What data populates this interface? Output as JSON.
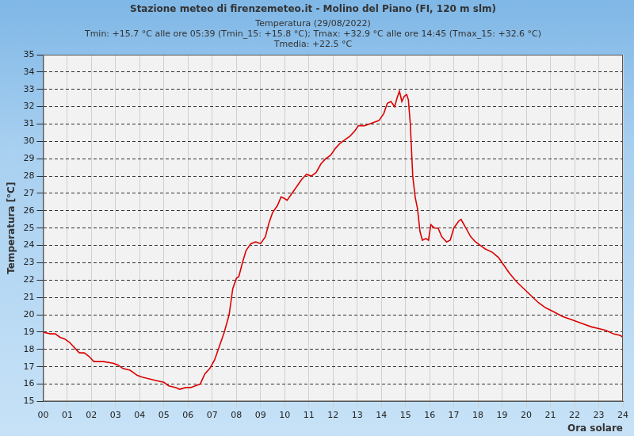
{
  "chart_data": {
    "type": "line",
    "title": "Stazione meteo di firenzemeteo.it - Molino del Piano (FI, 120 m slm)",
    "subtitle": [
      "Temperatura (29/08/2022)",
      "Tmin: +15.7 °C alle ore 05:39 (Tmin_15: +15.8 °C); Tmax: +32.9 °C alle ore 14:45 (Tmax_15: +32.6 °C)",
      "Tmedia: +22.5 °C"
    ],
    "x_label": "Ora solare",
    "y_label": "Temperatura [°C]",
    "x": [
      0.0,
      0.3,
      0.5,
      0.7,
      0.9,
      1.1,
      1.3,
      1.5,
      1.7,
      1.9,
      2.1,
      2.5,
      2.9,
      3.1,
      3.3,
      3.6,
      3.9,
      4.1,
      4.4,
      4.7,
      5.0,
      5.2,
      5.5,
      5.65,
      5.9,
      6.1,
      6.3,
      6.5,
      6.7,
      6.9,
      7.1,
      7.3,
      7.5,
      7.7,
      7.85,
      8.0,
      8.1,
      8.25,
      8.4,
      8.6,
      8.8,
      9.0,
      9.2,
      9.35,
      9.5,
      9.7,
      9.85,
      10.0,
      10.1,
      10.3,
      10.5,
      10.7,
      10.9,
      11.1,
      11.3,
      11.5,
      11.7,
      11.9,
      12.1,
      12.3,
      12.5,
      12.7,
      12.9,
      13.05,
      13.3,
      13.5,
      13.7,
      13.9,
      14.1,
      14.25,
      14.4,
      14.55,
      14.65,
      14.75,
      14.85,
      14.95,
      15.05,
      15.12,
      15.2,
      15.3,
      15.4,
      15.5,
      15.6,
      15.7,
      15.85,
      15.95,
      16.05,
      16.2,
      16.35,
      16.5,
      16.7,
      16.85,
      17.0,
      17.2,
      17.3,
      17.5,
      17.7,
      17.9,
      18.1,
      18.3,
      18.6,
      18.85,
      19.1,
      19.3,
      19.6,
      19.9,
      20.2,
      20.5,
      20.8,
      21.1,
      21.5,
      21.9,
      22.3,
      22.7,
      23.0,
      23.3,
      23.6,
      23.9,
      24.0
    ],
    "series": [
      {
        "name": "Temperatura",
        "color": "#dd0000",
        "values": [
          19.0,
          18.9,
          18.9,
          18.7,
          18.6,
          18.4,
          18.1,
          17.8,
          17.8,
          17.6,
          17.3,
          17.3,
          17.2,
          17.1,
          16.9,
          16.8,
          16.5,
          16.4,
          16.3,
          16.2,
          16.1,
          15.9,
          15.8,
          15.7,
          15.8,
          15.8,
          15.9,
          16.0,
          16.6,
          16.9,
          17.4,
          18.2,
          19.0,
          20.0,
          21.5,
          22.1,
          22.2,
          23.0,
          23.7,
          24.1,
          24.2,
          24.1,
          24.5,
          25.3,
          25.9,
          26.3,
          26.8,
          26.7,
          26.6,
          27.0,
          27.4,
          27.8,
          28.1,
          28.0,
          28.2,
          28.7,
          29.0,
          29.2,
          29.6,
          29.9,
          30.1,
          30.3,
          30.6,
          30.9,
          30.9,
          31.0,
          31.1,
          31.2,
          31.6,
          32.2,
          32.3,
          32.0,
          32.5,
          32.9,
          32.3,
          32.6,
          32.7,
          32.4,
          31.0,
          28.0,
          26.8,
          26.1,
          24.8,
          24.3,
          24.4,
          24.3,
          25.2,
          25.0,
          25.0,
          24.5,
          24.2,
          24.3,
          25.0,
          25.4,
          25.5,
          25.0,
          24.5,
          24.2,
          24.0,
          23.8,
          23.6,
          23.3,
          22.8,
          22.4,
          21.9,
          21.5,
          21.1,
          20.7,
          20.4,
          20.2,
          19.9,
          19.7,
          19.5,
          19.3,
          19.2,
          19.1,
          18.9,
          18.8,
          18.7
        ]
      }
    ],
    "xlim": [
      0,
      24
    ],
    "xticks": [
      {
        "value": 0,
        "label": "00"
      },
      {
        "value": 1,
        "label": "01"
      },
      {
        "value": 2,
        "label": "02"
      },
      {
        "value": 3,
        "label": "03"
      },
      {
        "value": 4,
        "label": "04"
      },
      {
        "value": 5,
        "label": "05"
      },
      {
        "value": 6,
        "label": "06"
      },
      {
        "value": 7,
        "label": "07"
      },
      {
        "value": 8,
        "label": "08"
      },
      {
        "value": 9,
        "label": "09"
      },
      10,
      11,
      12,
      13,
      14,
      15,
      16,
      17,
      18,
      19,
      20,
      21,
      22,
      23,
      24
    ],
    "ylim": [
      15,
      35
    ],
    "yticks": [
      15,
      16,
      17,
      18,
      19,
      20,
      21,
      22,
      23,
      24,
      25,
      26,
      27,
      28,
      29,
      30,
      31,
      32,
      33,
      34,
      35
    ],
    "grid": true
  }
}
